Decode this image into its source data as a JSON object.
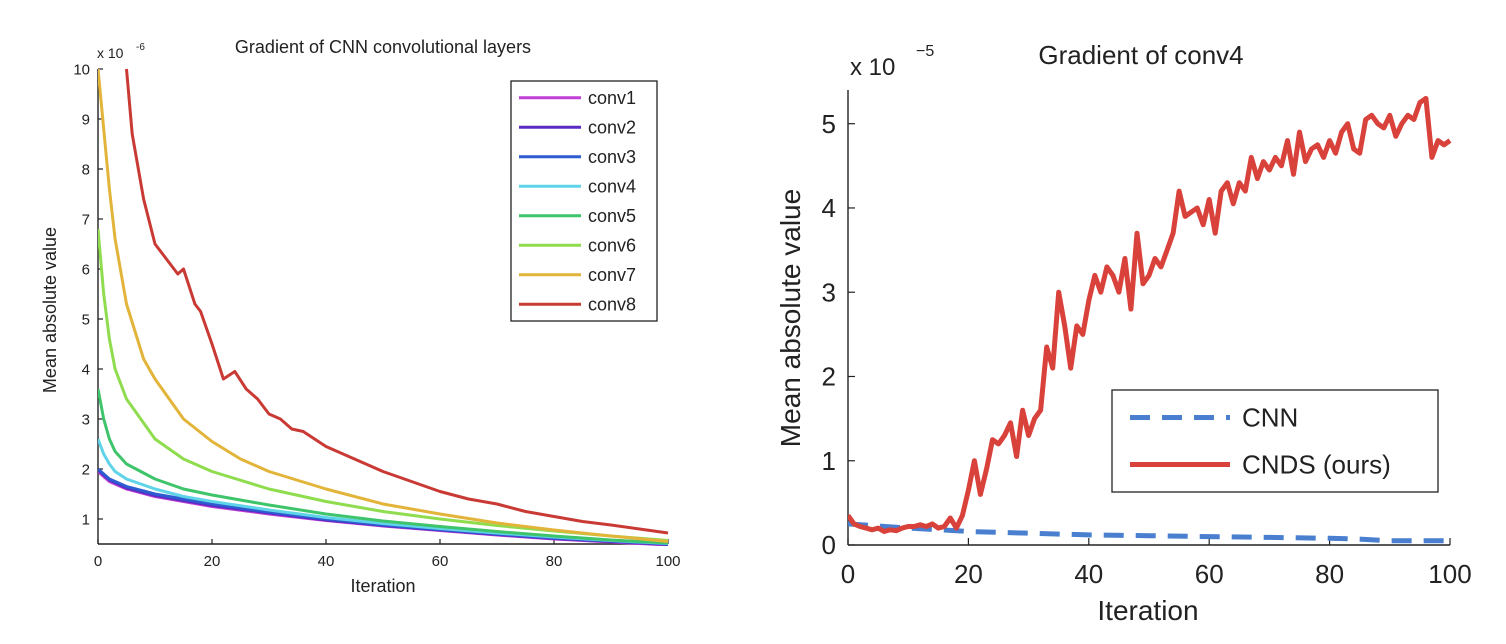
{
  "chart_data": [
    {
      "type": "line",
      "title": "Gradient of CNN convolutional layers",
      "xlabel": "Iteration",
      "ylabel": "Mean absolute value",
      "y_scale_note": "x 10",
      "y_scale_exp": "-6",
      "xlim": [
        0,
        100
      ],
      "ylim": [
        0.5,
        10
      ],
      "x_ticks": [
        0,
        20,
        40,
        60,
        80,
        100
      ],
      "y_ticks": [
        1,
        2,
        3,
        4,
        5,
        6,
        7,
        8,
        9,
        10
      ],
      "grid": false,
      "legend_position": "top-right",
      "series": [
        {
          "name": "conv1",
          "color": "#c13fd6",
          "x": [
            0,
            1,
            2,
            5,
            10,
            15,
            20,
            30,
            40,
            50,
            60,
            70,
            80,
            90,
            100
          ],
          "y": [
            1.95,
            1.85,
            1.75,
            1.6,
            1.45,
            1.35,
            1.25,
            1.1,
            0.97,
            0.86,
            0.77,
            0.68,
            0.6,
            0.54,
            0.48
          ]
        },
        {
          "name": "conv2",
          "color": "#5b2bc4",
          "x": [
            0,
            1,
            2,
            5,
            10,
            15,
            20,
            30,
            40,
            50,
            60,
            70,
            80,
            90,
            100
          ],
          "y": [
            1.98,
            1.88,
            1.78,
            1.62,
            1.47,
            1.37,
            1.27,
            1.12,
            0.98,
            0.87,
            0.78,
            0.69,
            0.61,
            0.55,
            0.49
          ]
        },
        {
          "name": "conv3",
          "color": "#2d5bd0",
          "x": [
            0,
            1,
            2,
            5,
            10,
            15,
            20,
            30,
            40,
            50,
            60,
            70,
            80,
            90,
            100
          ],
          "y": [
            2.0,
            1.9,
            1.8,
            1.65,
            1.5,
            1.4,
            1.3,
            1.14,
            1.0,
            0.88,
            0.79,
            0.7,
            0.62,
            0.56,
            0.5
          ]
        },
        {
          "name": "conv4",
          "color": "#5fd3e8",
          "x": [
            0,
            1,
            2,
            3,
            5,
            10,
            15,
            20,
            30,
            40,
            50,
            60,
            70,
            80,
            90,
            100
          ],
          "y": [
            2.6,
            2.3,
            2.1,
            1.95,
            1.8,
            1.6,
            1.45,
            1.35,
            1.18,
            1.03,
            0.91,
            0.81,
            0.72,
            0.64,
            0.57,
            0.51
          ]
        },
        {
          "name": "conv5",
          "color": "#3ec46a",
          "x": [
            0,
            1,
            2,
            3,
            5,
            10,
            15,
            20,
            30,
            40,
            50,
            60,
            70,
            80,
            90,
            100
          ],
          "y": [
            3.6,
            3.0,
            2.6,
            2.35,
            2.1,
            1.8,
            1.6,
            1.48,
            1.28,
            1.1,
            0.96,
            0.85,
            0.75,
            0.66,
            0.58,
            0.52
          ]
        },
        {
          "name": "conv6",
          "color": "#8fdc4e",
          "x": [
            0,
            1,
            2,
            3,
            5,
            10,
            15,
            20,
            30,
            40,
            50,
            60,
            70,
            80,
            90,
            100
          ],
          "y": [
            6.8,
            5.5,
            4.6,
            4.0,
            3.4,
            2.6,
            2.2,
            1.95,
            1.6,
            1.35,
            1.15,
            1.0,
            0.87,
            0.76,
            0.66,
            0.57
          ]
        },
        {
          "name": "conv7",
          "color": "#e3b43a",
          "x": [
            0,
            1,
            2,
            3,
            5,
            8,
            10,
            15,
            20,
            25,
            30,
            40,
            50,
            60,
            70,
            80,
            90,
            100
          ],
          "y": [
            10.0,
            8.8,
            7.6,
            6.6,
            5.3,
            4.2,
            3.8,
            3.0,
            2.55,
            2.2,
            1.95,
            1.6,
            1.3,
            1.1,
            0.92,
            0.78,
            0.66,
            0.55
          ]
        },
        {
          "name": "conv8",
          "color": "#c93a35",
          "x": [
            5,
            6,
            8,
            10,
            12,
            14,
            15,
            17,
            18,
            20,
            22,
            24,
            26,
            28,
            30,
            32,
            34,
            36,
            38,
            40,
            42,
            45,
            48,
            50,
            55,
            60,
            65,
            70,
            75,
            80,
            85,
            90,
            95,
            100
          ],
          "y": [
            10.0,
            8.7,
            7.4,
            6.5,
            6.2,
            5.9,
            6.0,
            5.3,
            5.15,
            4.5,
            3.8,
            3.95,
            3.6,
            3.4,
            3.1,
            3.0,
            2.8,
            2.75,
            2.6,
            2.45,
            2.35,
            2.2,
            2.05,
            1.95,
            1.75,
            1.55,
            1.4,
            1.3,
            1.15,
            1.05,
            0.95,
            0.88,
            0.8,
            0.72
          ]
        }
      ]
    },
    {
      "type": "line",
      "title": "Gradient of conv4",
      "xlabel": "Iteration",
      "ylabel": "Mean absolute value",
      "y_scale_note": "x 10",
      "y_scale_exp": "−5",
      "xlim": [
        0,
        100
      ],
      "ylim": [
        0,
        5.4
      ],
      "x_ticks": [
        0,
        20,
        40,
        60,
        80,
        100
      ],
      "y_ticks": [
        0,
        1,
        2,
        3,
        4,
        5
      ],
      "grid": false,
      "legend_position": "bottom-right",
      "series": [
        {
          "name": "CNN",
          "color": "#4a7fd0",
          "dashed": true,
          "x": [
            0,
            10,
            18,
            20,
            30,
            40,
            50,
            60,
            70,
            80,
            85,
            90,
            100
          ],
          "y": [
            0.25,
            0.2,
            0.17,
            0.16,
            0.14,
            0.12,
            0.11,
            0.1,
            0.09,
            0.08,
            0.07,
            0.05,
            0.05
          ]
        },
        {
          "name": "CNDS (ours)",
          "color": "#d9413b",
          "x": [
            0,
            1,
            2,
            3,
            4,
            5,
            6,
            7,
            8,
            9,
            10,
            11,
            12,
            13,
            14,
            15,
            16,
            17,
            18,
            19,
            20,
            21,
            22,
            23,
            24,
            25,
            26,
            27,
            28,
            29,
            30,
            31,
            32,
            33,
            34,
            35,
            36,
            37,
            38,
            39,
            40,
            41,
            42,
            43,
            44,
            45,
            46,
            47,
            48,
            49,
            50,
            51,
            52,
            53,
            54,
            55,
            56,
            57,
            58,
            59,
            60,
            61,
            62,
            63,
            64,
            65,
            66,
            67,
            68,
            69,
            70,
            71,
            72,
            73,
            74,
            75,
            76,
            77,
            78,
            79,
            80,
            81,
            82,
            83,
            84,
            85,
            86,
            87,
            88,
            89,
            90,
            91,
            92,
            93,
            94,
            95,
            96,
            97,
            98,
            99,
            100
          ],
          "y": [
            0.35,
            0.25,
            0.22,
            0.2,
            0.18,
            0.2,
            0.16,
            0.18,
            0.17,
            0.2,
            0.22,
            0.22,
            0.24,
            0.22,
            0.25,
            0.2,
            0.22,
            0.32,
            0.2,
            0.35,
            0.65,
            1.0,
            0.6,
            0.9,
            1.25,
            1.2,
            1.3,
            1.45,
            1.05,
            1.6,
            1.3,
            1.5,
            1.6,
            2.35,
            2.1,
            3.0,
            2.6,
            2.1,
            2.6,
            2.5,
            2.9,
            3.2,
            3.0,
            3.3,
            3.2,
            3.0,
            3.4,
            2.8,
            3.7,
            3.1,
            3.2,
            3.4,
            3.3,
            3.5,
            3.7,
            4.2,
            3.9,
            3.95,
            4.0,
            3.8,
            4.1,
            3.7,
            4.2,
            4.3,
            4.05,
            4.3,
            4.2,
            4.6,
            4.35,
            4.55,
            4.45,
            4.6,
            4.5,
            4.8,
            4.4,
            4.9,
            4.55,
            4.7,
            4.75,
            4.6,
            4.8,
            4.65,
            4.9,
            5.0,
            4.7,
            4.65,
            5.05,
            5.1,
            5.0,
            4.95,
            5.1,
            4.85,
            5.0,
            5.1,
            5.05,
            5.25,
            5.3,
            4.6,
            4.8,
            4.75,
            4.8
          ]
        }
      ]
    }
  ]
}
